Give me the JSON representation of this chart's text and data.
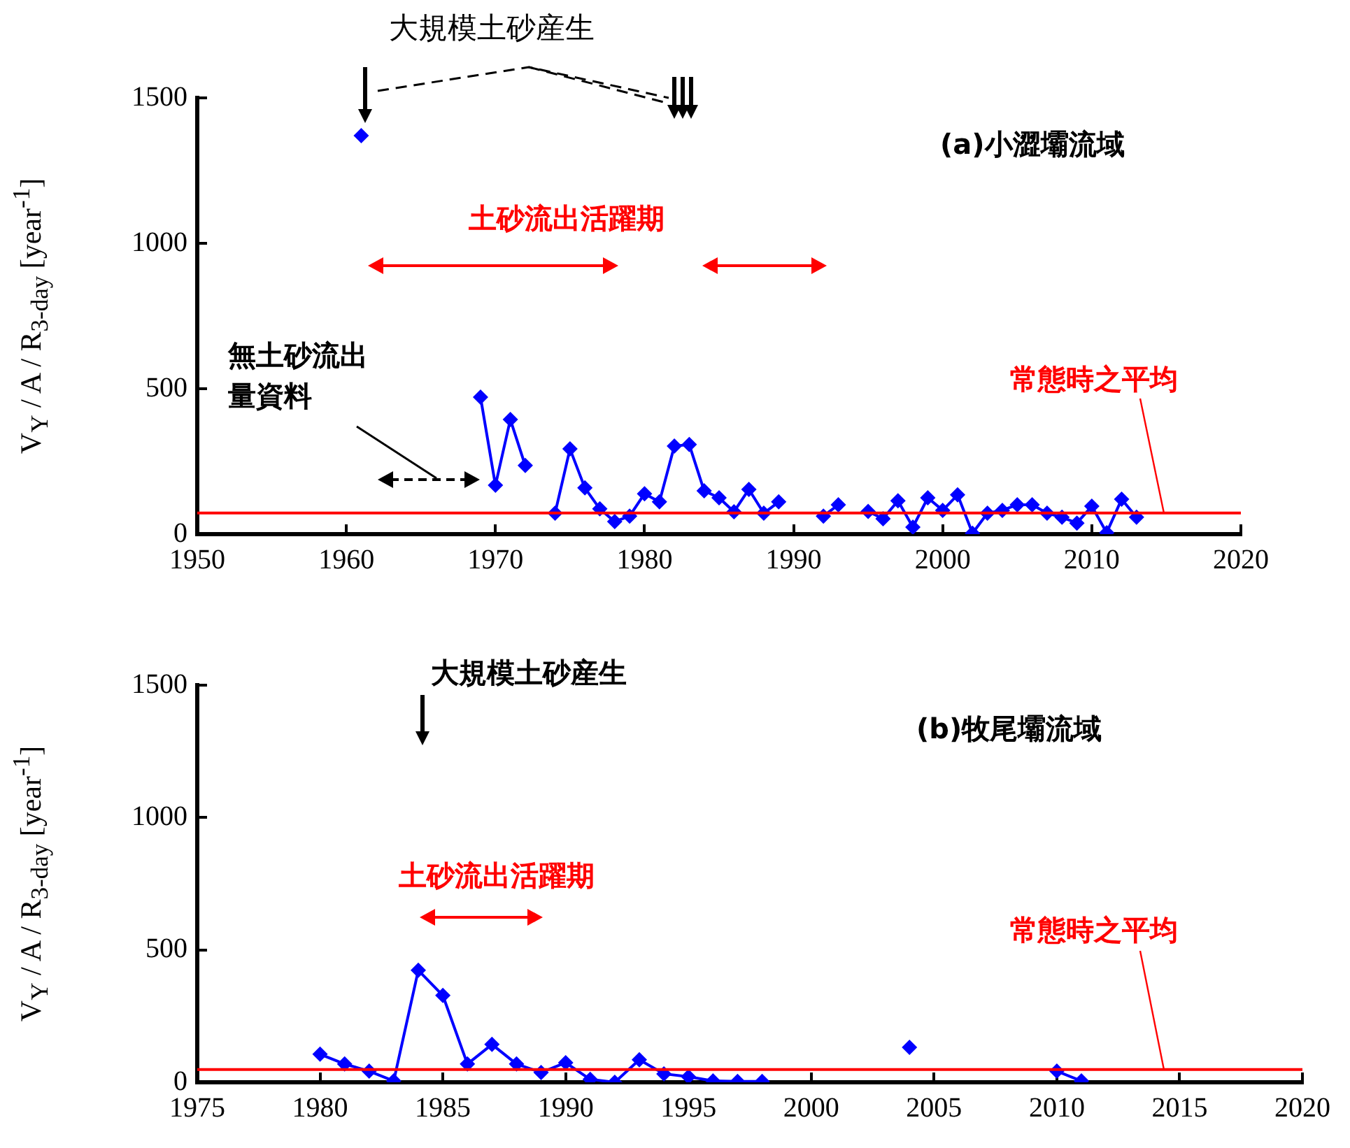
{
  "chart_data": [
    {
      "type": "line",
      "title": "(a)小澀壩流域",
      "ylabel": "V$_{Y}$ / A / R$_{3-day}$ [year$^{-1}$]",
      "xlim": [
        1950,
        2020
      ],
      "xticks": [
        1950,
        1960,
        1970,
        1980,
        1990,
        2000,
        2010,
        2020
      ],
      "ylim": [
        0,
        1500
      ],
      "yticks": [
        0,
        500,
        1000,
        1500
      ],
      "marker": "diamond",
      "series": [
        {
          "color": "#0000ff",
          "x": [
            1961,
            1962,
            1963,
            1964,
            1965,
            1966,
            1967,
            1968,
            1969,
            1970,
            1971,
            1972,
            1973,
            1974,
            1975,
            1976,
            1977,
            1978,
            1979,
            1980,
            1981,
            1982,
            1983,
            1984,
            1985,
            1986,
            1987,
            1988,
            1989,
            1990,
            1991,
            1992,
            1993,
            1994,
            1995,
            1996,
            1997,
            1998,
            1999,
            2000,
            2001,
            2002,
            2003,
            2004,
            2005,
            2006,
            2007,
            2008,
            2009,
            2010,
            2011,
            2012,
            2013
          ],
          "values": [
            1370,
            null,
            null,
            null,
            null,
            null,
            null,
            null,
            471,
            168,
            394,
            236,
            null,
            72,
            293,
            159,
            87,
            43,
            62,
            139,
            111,
            303,
            308,
            149,
            125,
            77,
            154,
            72,
            111,
            null,
            null,
            62,
            101,
            null,
            78,
            53,
            115,
            24,
            125,
            82,
            135,
            3,
            72,
            82,
            101,
            101,
            72,
            58,
            38,
            96,
            5,
            120,
            58
          ]
        }
      ],
      "ref_lines": [
        {
          "axis": "y",
          "value": 73,
          "label": "常態時之平均",
          "color": "#ff0000"
        }
      ],
      "annotations": [
        "大規模土砂産生",
        "土砂流出活躍期",
        "無土砂流出量資料"
      ]
    },
    {
      "type": "line",
      "title": "(b)牧尾壩流域",
      "ylabel": "V$_{Y}$ / A / R$_{3-day}$ [year$^{-1}$]",
      "xlim": [
        1975,
        2020
      ],
      "xticks": [
        1975,
        1980,
        1985,
        1990,
        1995,
        2000,
        2005,
        2010,
        2015,
        2020
      ],
      "ylim": [
        0,
        1500
      ],
      "yticks": [
        0,
        500,
        1000,
        1500
      ],
      "marker": "diamond",
      "series": [
        {
          "color": "#0000ff",
          "x": [
            1980,
            1981,
            1982,
            1983,
            1984,
            1985,
            1986,
            1987,
            1988,
            1989,
            1990,
            1991,
            1992,
            1993,
            1994,
            1995,
            1996,
            1997,
            1998,
            1999,
            2000,
            2001,
            2002,
            2003,
            2004,
            2005,
            2006,
            2007,
            2008,
            2009,
            2010,
            2011
          ],
          "values": [
            106,
            69,
            42,
            5,
            423,
            328,
            69,
            143,
            69,
            37,
            74,
            11,
            0,
            85,
            32,
            21,
            5,
            3,
            3,
            null,
            null,
            null,
            null,
            null,
            132,
            null,
            null,
            null,
            null,
            null,
            42,
            5
          ]
        }
      ],
      "ref_lines": [
        {
          "axis": "y",
          "value": 48,
          "label": "常態時之平均",
          "color": "#ff0000"
        }
      ],
      "annotations": [
        "大規模土砂産生",
        "土砂流出活躍期"
      ]
    }
  ]
}
